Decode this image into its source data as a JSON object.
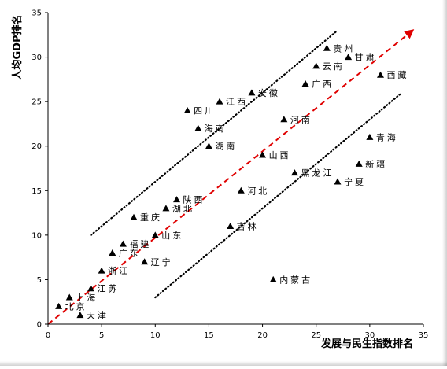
{
  "chart_data": {
    "type": "scatter",
    "title": "",
    "xlabel": "发展与民生指数排名",
    "ylabel": "人均GDP排名",
    "xlim": [
      0,
      35
    ],
    "ylim": [
      0,
      35
    ],
    "xticks": [
      "0",
      "5",
      "10",
      "15",
      "20",
      "25",
      "30",
      "35"
    ],
    "yticks": [
      "0",
      "5",
      "10",
      "15",
      "20",
      "25",
      "30",
      "35"
    ],
    "grid": false,
    "marker_color": "#000000",
    "series": [
      {
        "points": [
          {
            "label": "北京",
            "x": 1,
            "y": 2
          },
          {
            "label": "上海",
            "x": 2,
            "y": 3
          },
          {
            "label": "天津",
            "x": 3,
            "y": 1
          },
          {
            "label": "江苏",
            "x": 4,
            "y": 4
          },
          {
            "label": "浙江",
            "x": 5,
            "y": 6
          },
          {
            "label": "广东",
            "x": 6,
            "y": 8
          },
          {
            "label": "福建",
            "x": 7,
            "y": 9
          },
          {
            "label": "重庆",
            "x": 8,
            "y": 12
          },
          {
            "label": "辽宁",
            "x": 9,
            "y": 7
          },
          {
            "label": "山东",
            "x": 10,
            "y": 10
          },
          {
            "label": "湖北",
            "x": 11,
            "y": 13
          },
          {
            "label": "陕西",
            "x": 12,
            "y": 14
          },
          {
            "label": "四川",
            "x": 13,
            "y": 24
          },
          {
            "label": "海南",
            "x": 14,
            "y": 22
          },
          {
            "label": "湖南",
            "x": 15,
            "y": 20
          },
          {
            "label": "江西",
            "x": 16,
            "y": 25
          },
          {
            "label": "吉林",
            "x": 17,
            "y": 11
          },
          {
            "label": "河北",
            "x": 18,
            "y": 15
          },
          {
            "label": "安徽",
            "x": 19,
            "y": 26
          },
          {
            "label": "山西",
            "x": 20,
            "y": 19
          },
          {
            "label": "内蒙古",
            "x": 21,
            "y": 5
          },
          {
            "label": "河南",
            "x": 22,
            "y": 23
          },
          {
            "label": "黑龙江",
            "x": 23,
            "y": 17
          },
          {
            "label": "广西",
            "x": 24,
            "y": 27
          },
          {
            "label": "云南",
            "x": 25,
            "y": 29
          },
          {
            "label": "贵州",
            "x": 26,
            "y": 31
          },
          {
            "label": "宁夏",
            "x": 27,
            "y": 16
          },
          {
            "label": "甘肃",
            "x": 28,
            "y": 30
          },
          {
            "label": "新疆",
            "x": 29,
            "y": 18
          },
          {
            "label": "青海",
            "x": 30,
            "y": 21
          },
          {
            "label": "西藏",
            "x": 31,
            "y": 28
          }
        ]
      }
    ],
    "reference_lines": [
      {
        "style": "dashed",
        "color": "#e00000",
        "arrow": true,
        "from": [
          0,
          0
        ],
        "to": [
          34,
          33
        ]
      },
      {
        "style": "dotted",
        "color": "#000000",
        "from": [
          4,
          10
        ],
        "to": [
          27,
          33
        ]
      },
      {
        "style": "dotted",
        "color": "#000000",
        "from": [
          10,
          3
        ],
        "to": [
          33,
          26
        ]
      }
    ]
  }
}
